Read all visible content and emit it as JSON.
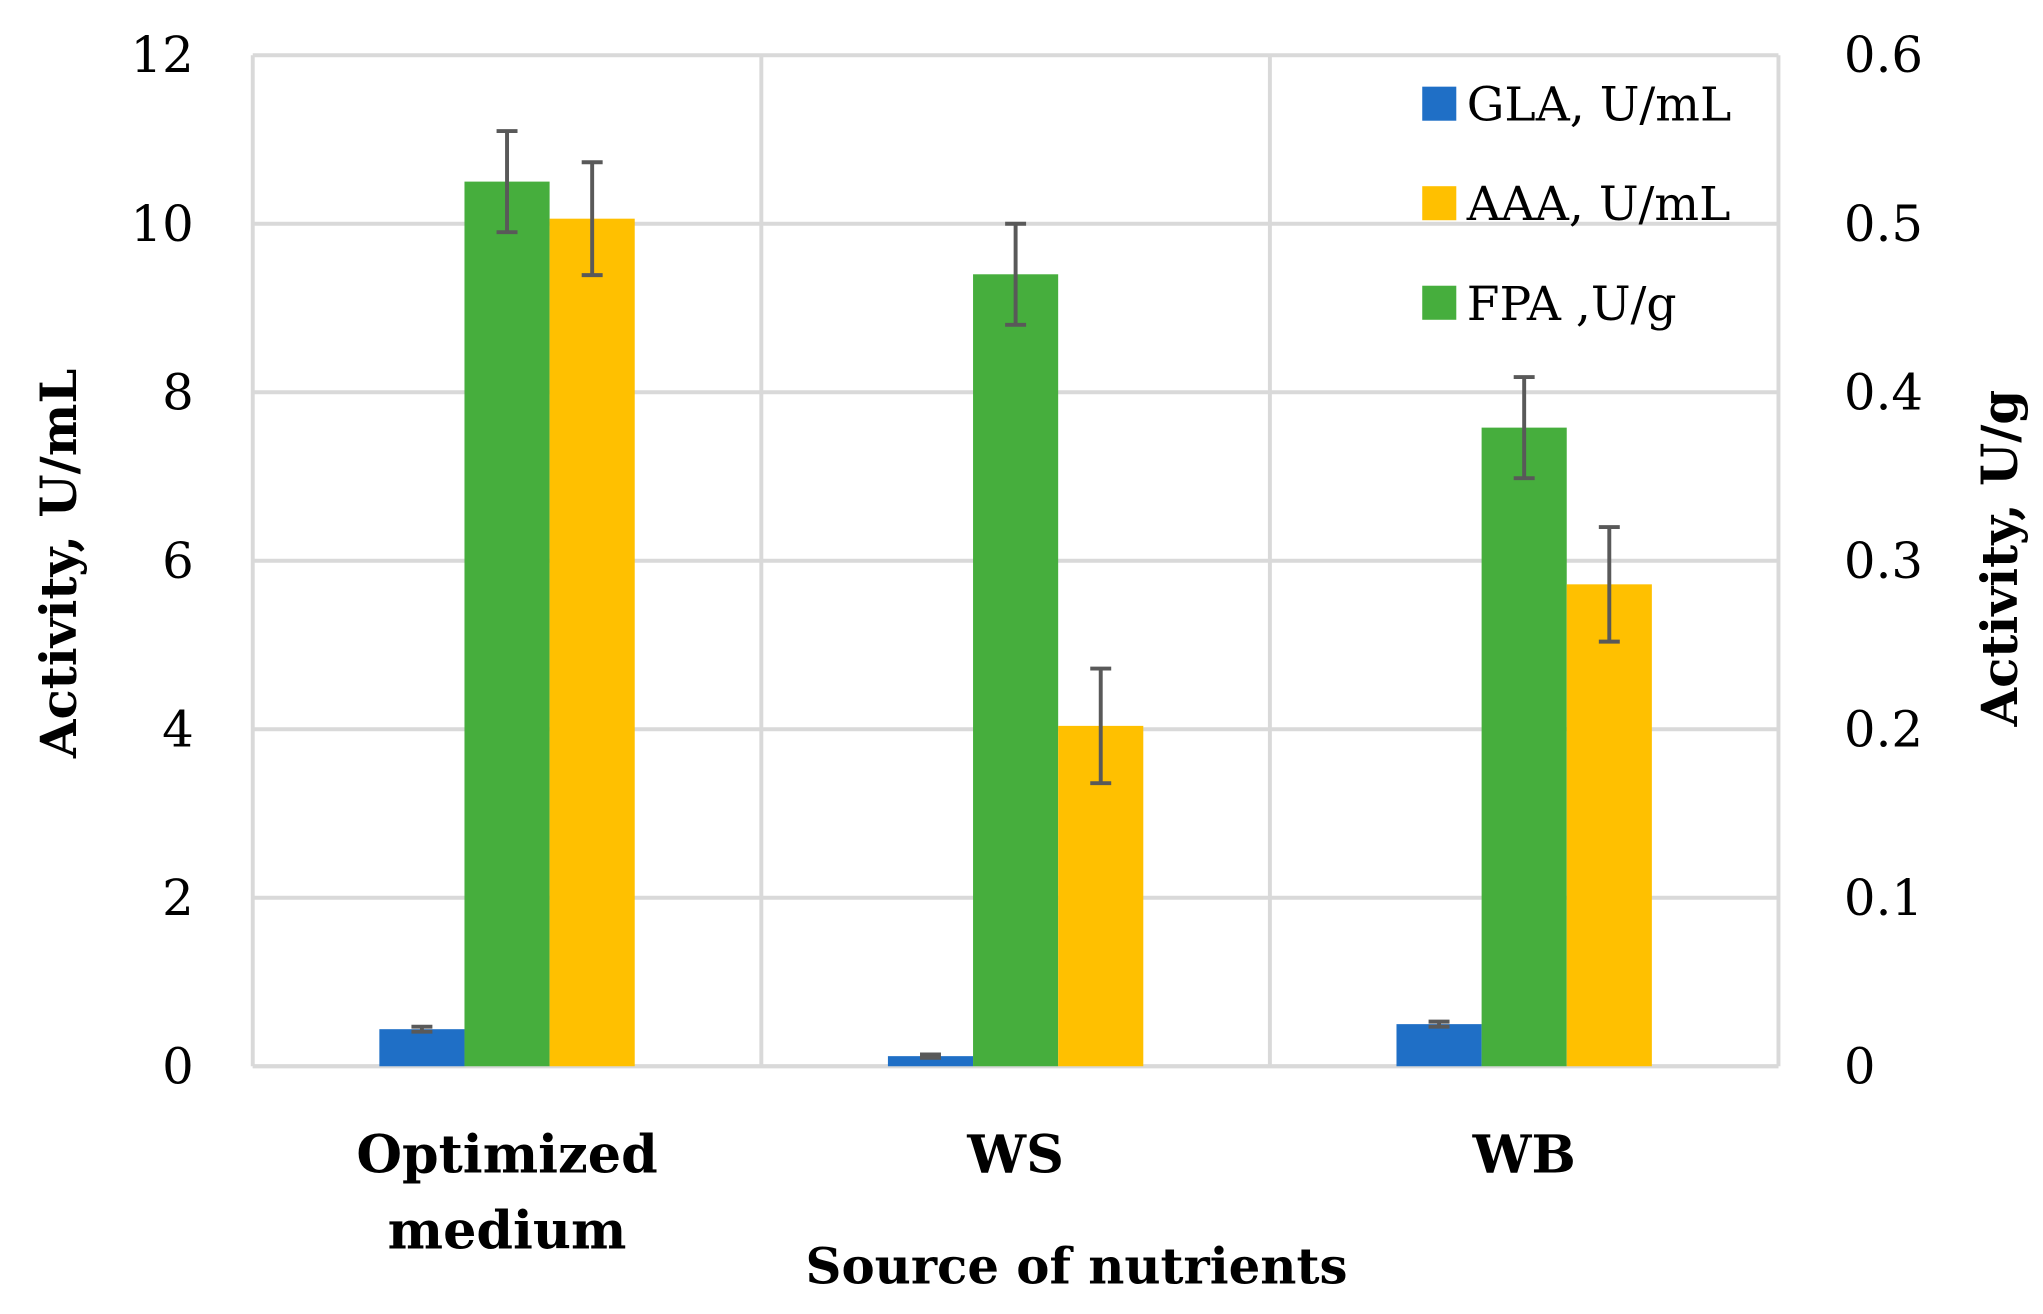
{
  "chart_data": {
    "type": "bar",
    "title": "",
    "xlabel": "Source of nutrients",
    "ylabel": "Activity, U/mL",
    "y2label": "Activity, U/g",
    "ylim": [
      0,
      12
    ],
    "y2lim": [
      0,
      0.6
    ],
    "yticks": [
      "0",
      "2",
      "4",
      "6",
      "8",
      "10",
      "12"
    ],
    "y2ticks": [
      "0",
      "0.1",
      "0.2",
      "0.3",
      "0.4",
      "0.5",
      "0.6"
    ],
    "grid": true,
    "legend_position": "top-right",
    "categories": [
      "Optimized medium",
      "WS",
      "WB"
    ],
    "category_lines": [
      [
        "Optimized",
        "medium"
      ],
      [
        "WS"
      ],
      [
        "WB"
      ]
    ],
    "series": [
      {
        "name": "GLA, U/mL",
        "axis": "left",
        "color": "#1F6FC6",
        "values": [
          0.44,
          0.12,
          0.5
        ],
        "errors": [
          0.03,
          0.02,
          0.03
        ]
      },
      {
        "name": "FPA ,U/g",
        "axis": "right",
        "color": "#46AE3D",
        "values": [
          0.525,
          0.47,
          0.379
        ],
        "errors": [
          0.03,
          0.03,
          0.03
        ]
      },
      {
        "name": "AAA, U/mL",
        "axis": "left",
        "color": "#FFC000",
        "values": [
          10.06,
          4.04,
          5.72
        ],
        "errors": [
          0.67,
          0.68,
          0.68
        ]
      }
    ],
    "legend_order": [
      0,
      2,
      1
    ]
  }
}
